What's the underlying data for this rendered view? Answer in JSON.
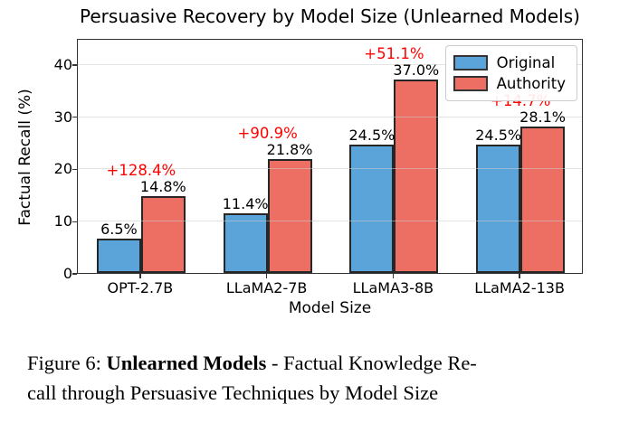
{
  "figure_title": "Persuasive Recovery by Model Size (Unlearned Models)",
  "chart_data": {
    "type": "bar",
    "title": "Persuasive Recovery by Model Size (Unlearned Models)",
    "xlabel": "Model Size",
    "ylabel": "Factual Recall (%)",
    "categories": [
      "OPT-2.7B",
      "LLaMA2-7B",
      "LLaMA3-8B",
      "LLaMA2-13B"
    ],
    "series": [
      {
        "name": "Original",
        "color": "#5BA4DA",
        "values": [
          6.5,
          11.4,
          24.5,
          24.5
        ],
        "value_labels": [
          "6.5%",
          "11.4%",
          "24.5%",
          "24.5%"
        ]
      },
      {
        "name": "Authority",
        "color": "#ED6E62",
        "values": [
          14.8,
          21.8,
          37.0,
          28.1
        ],
        "value_labels": [
          "14.8%",
          "21.8%",
          "37.0%",
          "28.1%"
        ]
      }
    ],
    "annotations": {
      "labels": [
        "+128.4%",
        "+90.9%",
        "+51.1%",
        "+14.7%"
      ],
      "color": "#FF0000"
    },
    "ylim": [
      0,
      45
    ],
    "yticks": [
      0,
      10,
      20,
      30,
      40
    ],
    "grid": true,
    "legend_position": "upper right",
    "bar_edge_color": "#262626"
  },
  "legend": {
    "items": [
      {
        "label": "Original",
        "color": "#5BA4DA"
      },
      {
        "label": "Authority",
        "color": "#ED6E62"
      }
    ]
  },
  "caption": {
    "prefix": "Figure 6: ",
    "bold": "Unlearned Models",
    "rest": " - Factual Knowledge Re-",
    "line2": "call through Persuasive Techniques by Model Size"
  }
}
